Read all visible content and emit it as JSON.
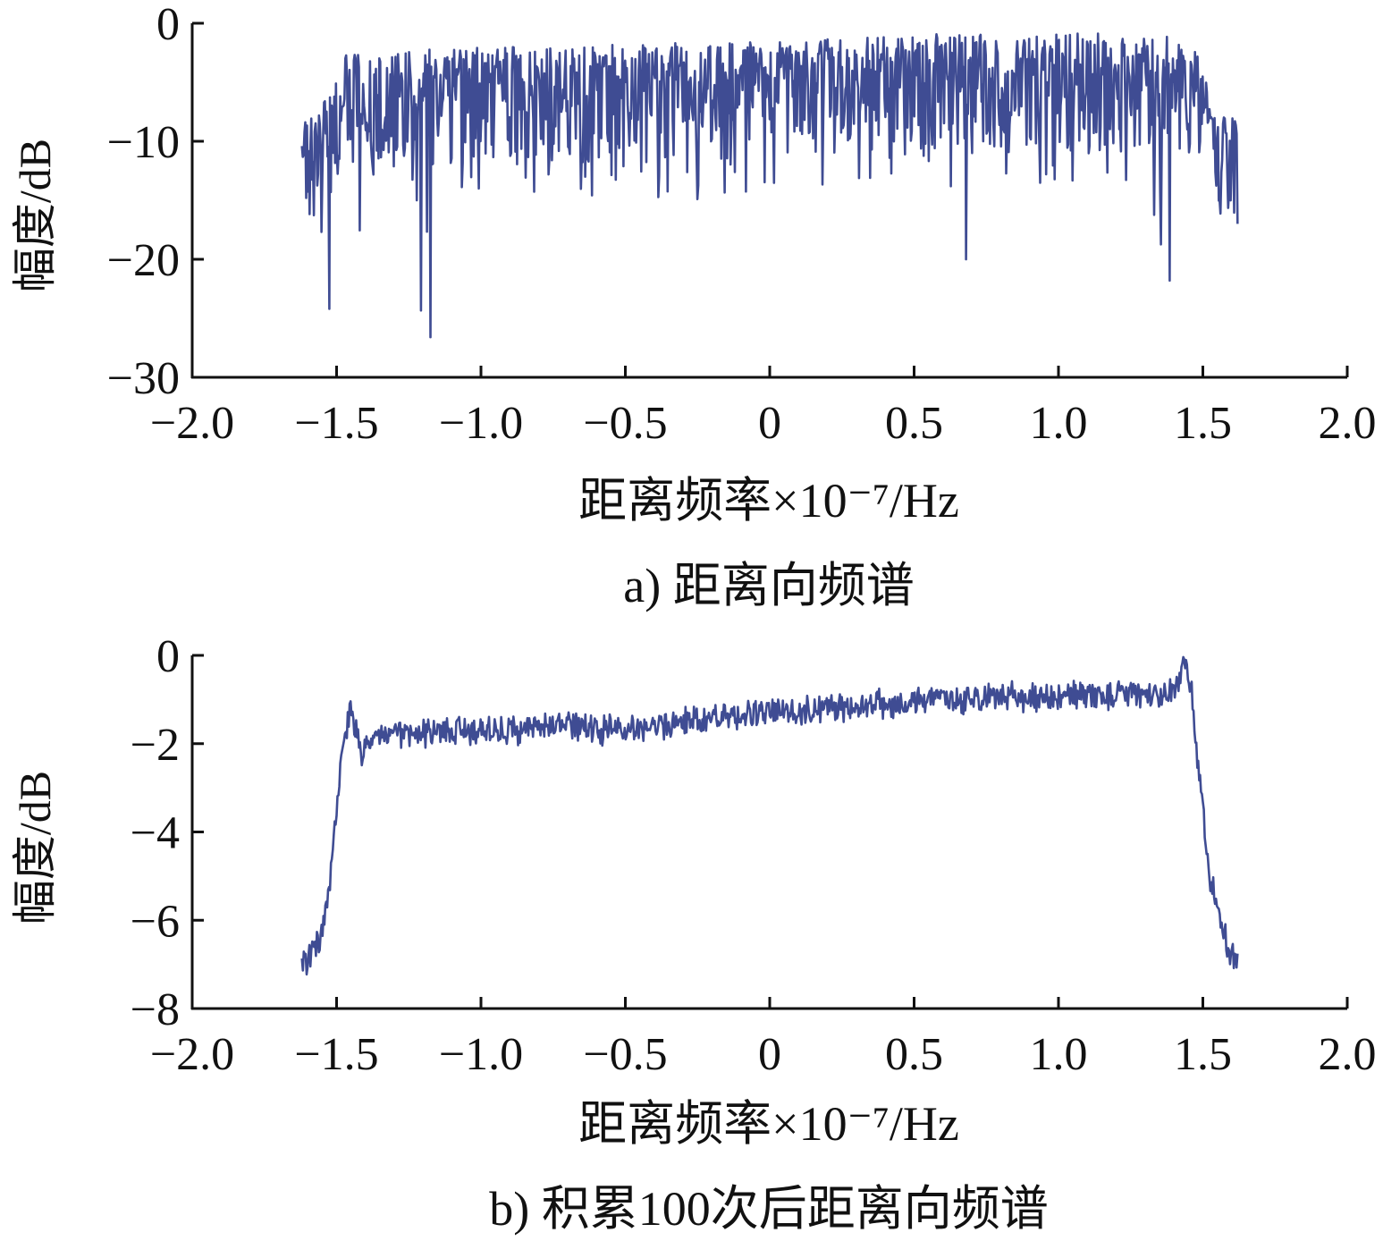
{
  "colors": {
    "line": "#3f4c93",
    "axis": "#111111",
    "text": "#111111",
    "background": "#ffffff"
  },
  "chart_data": [
    {
      "type": "line",
      "caption": "a) 距离向频谱",
      "xlabel": "距离频率×10⁻⁷/Hz",
      "ylabel": "幅度/dB",
      "xlim": [
        -2.0,
        2.0
      ],
      "ylim": [
        -30,
        0
      ],
      "xticks": [
        "−2.0",
        "−1.5",
        "−1.0",
        "−0.5",
        "0",
        "0.5",
        "1.0",
        "1.5",
        "2.0"
      ],
      "yticks": [
        "0",
        "−10",
        "−20",
        "−30"
      ],
      "grid": false,
      "legend": "none",
      "series": [
        {
          "x": [
            -1.62,
            -1.6,
            -1.58,
            -1.56,
            -1.54,
            -1.53,
            -1.52,
            -1.5,
            -1.48,
            -1.46,
            -1.44,
            -1.42,
            -1.4,
            -1.35,
            -1.3,
            -1.25,
            -1.2,
            -1.18,
            -1.17,
            -1.15,
            -1.1,
            -1.0,
            -0.9,
            -0.8,
            -0.7,
            -0.6,
            -0.5,
            -0.4,
            -0.3,
            -0.2,
            -0.1,
            0.0,
            0.1,
            0.2,
            0.3,
            0.4,
            0.5,
            0.6,
            0.68,
            0.7,
            0.8,
            0.9,
            1.0,
            1.1,
            1.2,
            1.3,
            1.38,
            1.4,
            1.45,
            1.5,
            1.52,
            1.55,
            1.58,
            1.6,
            1.62
          ],
          "y_mean": [
            -9.5,
            -10.5,
            -11,
            -11,
            -10,
            -10,
            -9,
            -8,
            -7,
            -6.5,
            -6.5,
            -6.5,
            -6.5,
            -6.5,
            -6.3,
            -6.2,
            -6.2,
            -6.2,
            -6.2,
            -6.2,
            -6.2,
            -6,
            -6,
            -5.9,
            -5.8,
            -5.7,
            -5.6,
            -5.5,
            -5.5,
            -5.5,
            -5.5,
            -5.5,
            -5.4,
            -5.3,
            -5.3,
            -5.2,
            -5.1,
            -5,
            -5,
            -5,
            -5,
            -4.9,
            -4.9,
            -4.9,
            -4.9,
            -4.9,
            -4.9,
            -4.9,
            -5,
            -5.5,
            -8,
            -10,
            -11,
            -11.5,
            -12
          ],
          "y_upper": [
            -7,
            -7,
            -7.5,
            -7.5,
            -6.5,
            -6,
            -5.5,
            -5,
            -3,
            -2.5,
            -2.5,
            -2.5,
            -2.5,
            -2.5,
            -2.3,
            -2.2,
            -2.2,
            -2.2,
            -2.2,
            -2.2,
            -2.2,
            -2,
            -2,
            -2,
            -2,
            -1.8,
            -1.8,
            -1.8,
            -1.6,
            -1.6,
            -1.5,
            -1.5,
            -1.3,
            -1.2,
            -1.2,
            -1.1,
            -1,
            -0.9,
            -0.9,
            -0.9,
            -0.9,
            -0.8,
            -0.8,
            -0.8,
            -0.8,
            -0.8,
            -0.8,
            -0.8,
            -2,
            -2.5,
            -7,
            -7.5,
            -7.5,
            -7.5,
            -8
          ],
          "y_lower": [
            -13,
            -16,
            -17,
            -17.5,
            -18,
            -24,
            -17,
            -16,
            -14,
            -13,
            -13,
            -19,
            -13,
            -13,
            -13,
            -13,
            -26.5,
            -13,
            -13,
            -13,
            -14,
            -14,
            -15,
            -15,
            -15,
            -15,
            -15,
            -15,
            -15,
            -15,
            -15,
            -15,
            -14,
            -14,
            -14,
            -14,
            -14,
            -14,
            -20,
            -14,
            -14,
            -14,
            -14,
            -14,
            -14,
            -15,
            -22,
            -15,
            -16,
            -16,
            -16,
            -17,
            -17,
            -17,
            -17
          ]
        }
      ]
    },
    {
      "type": "line",
      "caption": "b) 积累100次后距离向频谱",
      "xlabel": "距离频率×10⁻⁷/Hz",
      "ylabel": "幅度/dB",
      "xlim": [
        -2.0,
        2.0
      ],
      "ylim": [
        -8,
        0
      ],
      "xticks": [
        "−2.0",
        "−1.5",
        "−1.0",
        "−0.5",
        "0",
        "0.5",
        "1.0",
        "1.5",
        "2.0"
      ],
      "yticks": [
        "0",
        "−2",
        "−4",
        "−6",
        "−8"
      ],
      "grid": false,
      "legend": "none",
      "series": [
        {
          "x": [
            -1.62,
            -1.6,
            -1.58,
            -1.55,
            -1.52,
            -1.5,
            -1.48,
            -1.46,
            -1.45,
            -1.43,
            -1.41,
            -1.38,
            -1.3,
            -1.2,
            -1.1,
            -1.0,
            -0.9,
            -0.8,
            -0.7,
            -0.6,
            -0.5,
            -0.4,
            -0.3,
            -0.2,
            -0.1,
            0.0,
            0.1,
            0.2,
            0.3,
            0.4,
            0.5,
            0.6,
            0.7,
            0.8,
            0.9,
            1.0,
            1.1,
            1.2,
            1.3,
            1.35,
            1.4,
            1.43,
            1.44,
            1.46,
            1.48,
            1.5,
            1.52,
            1.55,
            1.58,
            1.6,
            1.62
          ],
          "y_mean": [
            -6.9,
            -6.9,
            -6.7,
            -6.3,
            -5,
            -3.5,
            -2.2,
            -1.4,
            -1.3,
            -1.8,
            -2.4,
            -1.8,
            -1.8,
            -1.8,
            -1.7,
            -1.7,
            -1.7,
            -1.6,
            -1.6,
            -1.7,
            -1.7,
            -1.6,
            -1.5,
            -1.4,
            -1.35,
            -1.3,
            -1.25,
            -1.2,
            -1.15,
            -1.1,
            -1.05,
            -1.0,
            -0.95,
            -0.95,
            -0.95,
            -0.9,
            -0.9,
            -0.9,
            -0.9,
            -0.95,
            -0.8,
            -0.2,
            -0.1,
            -0.8,
            -2.2,
            -3.5,
            -4.8,
            -5.8,
            -6.5,
            -6.8,
            -6.9
          ]
        }
      ]
    }
  ]
}
